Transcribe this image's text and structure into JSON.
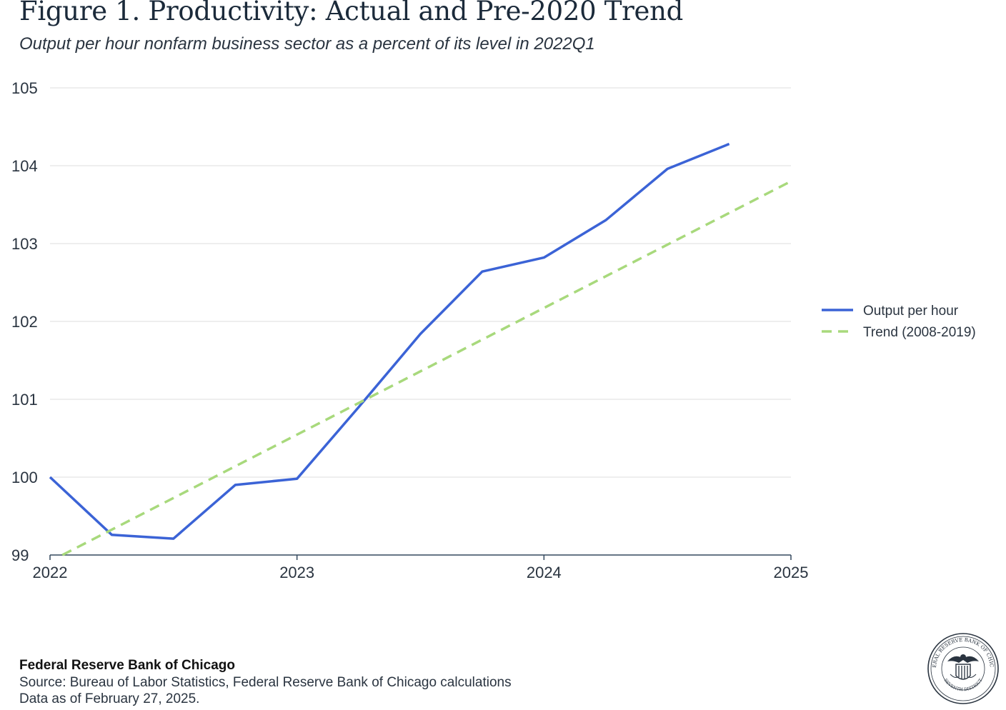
{
  "header": {
    "title": "Figure 1. Productivity: Actual and Pre-2020 Trend",
    "subtitle": "Output per hour nonfarm business sector as a percent of its level in 2022Q1"
  },
  "chart_data": {
    "type": "line",
    "ylim": [
      99,
      105
    ],
    "xlim": [
      2022,
      2025
    ],
    "y_ticks": [
      99,
      100,
      101,
      102,
      103,
      104,
      105
    ],
    "x_ticks": [
      2022,
      2023,
      2024,
      2025
    ],
    "grid": true,
    "legend_position": "right",
    "series": [
      {
        "name": "Output per hour",
        "color": "#3b63d6",
        "style": "solid",
        "x": [
          2022.0,
          2022.25,
          2022.5,
          2022.75,
          2023.0,
          2023.25,
          2023.5,
          2023.75,
          2024.0,
          2024.25,
          2024.5,
          2024.75
        ],
        "y": [
          100.0,
          99.26,
          99.21,
          99.9,
          99.98,
          100.9,
          101.84,
          102.64,
          102.82,
          103.3,
          103.96,
          104.28
        ]
      },
      {
        "name": "Trend (2008-2019)",
        "color": "#a8d97c",
        "style": "dashed",
        "x": [
          2022.05,
          2025.0
        ],
        "y": [
          99.0,
          103.8
        ]
      }
    ]
  },
  "footer": {
    "org": "Federal Reserve Bank of Chicago",
    "source": "Source: Bureau of Labor Statistics, Federal Reserve Bank of Chicago calculations",
    "date": "Data as of February 27, 2025.",
    "seal_text_top": "FEDERAL RESERVE BANK OF CHICAGO",
    "seal_text_bottom": "SEVENTH DISTRICT"
  }
}
